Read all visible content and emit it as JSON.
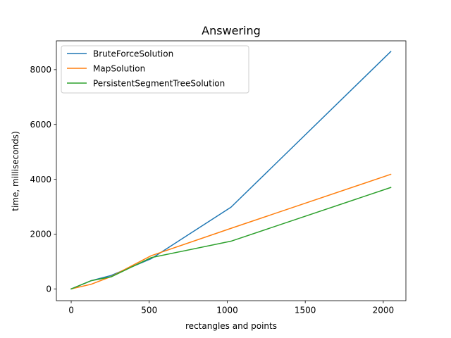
{
  "chart_data": {
    "type": "line",
    "title": "Answering",
    "xlabel": "rectangles and points",
    "ylabel": "time, milliseconds)",
    "xlim": [
      -95,
      2145
    ],
    "ylim": [
      -430,
      9050
    ],
    "x_ticks": [
      0,
      500,
      1000,
      1500,
      2000
    ],
    "x_tick_labels": [
      "0",
      "500",
      "1000",
      "1500",
      "2000"
    ],
    "y_ticks": [
      0,
      2000,
      4000,
      6000,
      8000
    ],
    "y_tick_labels": [
      "0",
      "2000",
      "4000",
      "6000",
      "8000"
    ],
    "grid": false,
    "legend_position": "top-left",
    "series": [
      {
        "name": "BruteForceSolution",
        "color": "#1f77b4",
        "x": [
          0,
          128,
          256,
          512,
          1024,
          2048
        ],
        "y": [
          0,
          300,
          490,
          1100,
          2980,
          8660
        ]
      },
      {
        "name": "MapSolution",
        "color": "#ff7f0e",
        "x": [
          0,
          128,
          256,
          512,
          1024,
          2048
        ],
        "y": [
          0,
          170,
          450,
          1210,
          2210,
          4180
        ]
      },
      {
        "name": "PersistentSegmentTreeSolution",
        "color": "#2ca02c",
        "x": [
          0,
          128,
          256,
          512,
          1024,
          2048
        ],
        "y": [
          0,
          300,
          440,
          1140,
          1740,
          3700
        ]
      }
    ]
  }
}
